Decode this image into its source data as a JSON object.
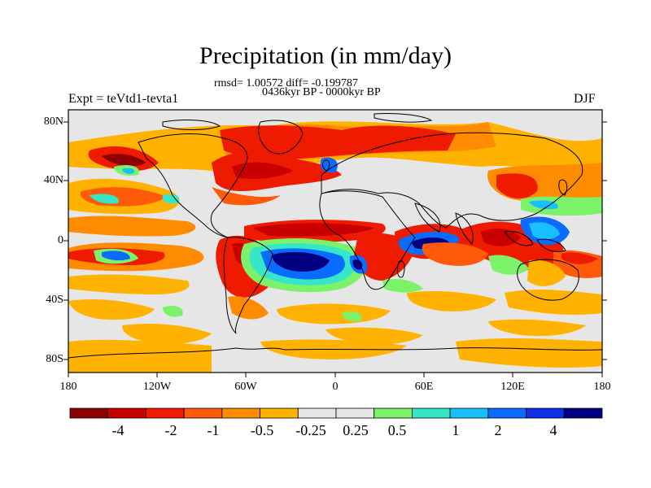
{
  "title": "Precipitation (in mm/day)",
  "stats_line": "rmsd= 1.00572 diff= -0.199787",
  "period_line": "0436kyr BP - 0000kyr BP",
  "experiment_label": "Expt = teVtd1-tevta1",
  "season_label": "DJF",
  "lat_ticks": [
    "80N",
    "40N",
    "0",
    "40S",
    "80S"
  ],
  "lon_ticks": [
    "180",
    "120W",
    "60W",
    "0",
    "60E",
    "120E",
    "180"
  ],
  "colorbar": {
    "colors": [
      "#8b0000",
      "#c80000",
      "#ee1b00",
      "#ff5a0a",
      "#ff8c00",
      "#ffb300",
      "#e6e6e6",
      "#e6e6e6",
      "#7cf26a",
      "#36e6c8",
      "#18c0ff",
      "#0a6cff",
      "#1030e8",
      "#000080"
    ],
    "labels": [
      "-4",
      "-2",
      "-1",
      "-0.5",
      "-0.25",
      "0.25",
      "0.5",
      "1",
      "2",
      "4"
    ]
  }
}
